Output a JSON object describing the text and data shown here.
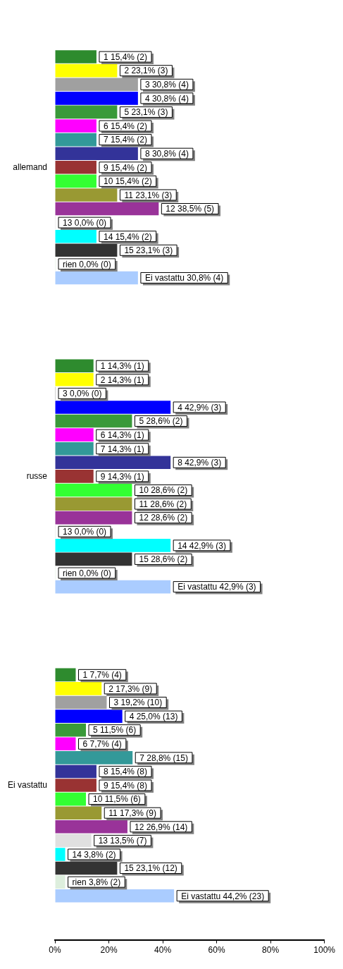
{
  "chart_data": {
    "type": "bar",
    "orientation": "horizontal",
    "categories": [
      "allemand",
      "russe",
      "Ei vastattu"
    ],
    "series": [
      {
        "color": "#2e8b2e",
        "values": [
          15.4,
          14.3,
          7.7
        ],
        "value_labels": [
          "1 15,4% (2)",
          "1 14,3% (1)",
          "1 7,7% (4)"
        ]
      },
      {
        "color": "#ffff00",
        "values": [
          23.1,
          14.3,
          17.3
        ],
        "value_labels": [
          "2 23,1% (3)",
          "2 14,3% (1)",
          "2 17,3% (9)"
        ]
      },
      {
        "color": "#a0a0a0",
        "values": [
          30.8,
          0,
          19.2
        ],
        "value_labels": [
          "3 30,8% (4)",
          "3 0,0% (0)",
          "3 19,2% (10)"
        ]
      },
      {
        "color": "#0000ff",
        "values": [
          30.8,
          42.9,
          25.0
        ],
        "value_labels": [
          "4 30,8% (4)",
          "4 42,9% (3)",
          "4 25,0% (13)"
        ]
      },
      {
        "color": "#3a9a3a",
        "values": [
          23.1,
          28.6,
          11.5
        ],
        "value_labels": [
          "5 23,1% (3)",
          "5 28,6% (2)",
          "5 11,5% (6)"
        ]
      },
      {
        "color": "#ff00ff",
        "values": [
          15.4,
          14.3,
          7.7
        ],
        "value_labels": [
          "6 15,4% (2)",
          "6 14,3% (1)",
          "6 7,7% (4)"
        ]
      },
      {
        "color": "#339999",
        "values": [
          15.4,
          14.3,
          28.8
        ],
        "value_labels": [
          "7 15,4% (2)",
          "7 14,3% (1)",
          "7 28,8% (15)"
        ]
      },
      {
        "color": "#333399",
        "values": [
          30.8,
          42.9,
          15.4
        ],
        "value_labels": [
          "8 30,8% (4)",
          "8 42,9% (3)",
          "8 15,4% (8)"
        ]
      },
      {
        "color": "#993333",
        "values": [
          15.4,
          14.3,
          15.4
        ],
        "value_labels": [
          "9 15,4% (2)",
          "9 14,3% (1)",
          "9 15,4% (8)"
        ]
      },
      {
        "color": "#33ff33",
        "values": [
          15.4,
          28.6,
          11.5
        ],
        "value_labels": [
          "10 15,4% (2)",
          "10 28,6% (2)",
          "10 11,5% (6)"
        ]
      },
      {
        "color": "#999933",
        "values": [
          23.1,
          28.6,
          17.3
        ],
        "value_labels": [
          "11 23,1% (3)",
          "11 28,6% (2)",
          "11 17,3% (9)"
        ]
      },
      {
        "color": "#993399",
        "values": [
          38.5,
          28.6,
          26.9
        ],
        "value_labels": [
          "12 38,5% (5)",
          "12 28,6% (2)",
          "12 26,9% (14)"
        ]
      },
      {
        "color": "#e0e0e0",
        "values": [
          0,
          0,
          13.5
        ],
        "value_labels": [
          "13 0,0% (0)",
          "13 0,0% (0)",
          "13 13,5% (7)"
        ]
      },
      {
        "color": "#00ffff",
        "values": [
          15.4,
          42.9,
          3.8
        ],
        "value_labels": [
          "14 15,4% (2)",
          "14 42,9% (3)",
          "14 3,8% (2)"
        ]
      },
      {
        "color": "#333333",
        "values": [
          23.1,
          28.6,
          23.1
        ],
        "value_labels": [
          "15 23,1% (3)",
          "15 28,6% (2)",
          "15 23,1% (12)"
        ]
      },
      {
        "color": "#ddeedd",
        "values": [
          0,
          0,
          3.8
        ],
        "value_labels": [
          "rien 0,0% (0)",
          "rien 0,0% (0)",
          "rien 3,8% (2)"
        ]
      },
      {
        "color": "#aaccff",
        "values": [
          30.8,
          42.9,
          44.2
        ],
        "value_labels": [
          "Ei vastattu 30,8% (4)",
          "Ei vastattu 42,9% (3)",
          "Ei vastattu 44,2% (23)"
        ]
      }
    ],
    "xlim": [
      0,
      100
    ],
    "xticks": [
      {
        "value": 0,
        "label": "0%"
      },
      {
        "value": 20,
        "label": "20%"
      },
      {
        "value": 40,
        "label": "40%"
      },
      {
        "value": 60,
        "label": "60%"
      },
      {
        "value": 80,
        "label": "80%"
      },
      {
        "value": 100,
        "label": "100%"
      }
    ],
    "grid": false,
    "legend": false
  }
}
